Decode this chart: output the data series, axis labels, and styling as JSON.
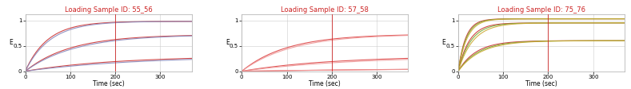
{
  "panels": [
    {
      "title": "Loading Sample ID: 55_56",
      "title_color": "#cc2222",
      "vline_x": 200,
      "vline_color": "#cc2222",
      "curves": [
        {
          "kd": 0.02,
          "plateau": 0.98,
          "color": "#cc3333",
          "lw": 0.8
        },
        {
          "kd": 0.018,
          "plateau": 0.98,
          "color": "#8888bb",
          "lw": 0.8
        },
        {
          "kd": 0.01,
          "plateau": 0.72,
          "color": "#cc3333",
          "lw": 0.8
        },
        {
          "kd": 0.009,
          "plateau": 0.72,
          "color": "#8888bb",
          "lw": 0.8
        },
        {
          "kd": 0.005,
          "plateau": 0.3,
          "color": "#cc3333",
          "lw": 0.8
        },
        {
          "kd": 0.004,
          "plateau": 0.3,
          "color": "#8888bb",
          "lw": 0.8
        }
      ],
      "xlim": [
        0,
        370
      ],
      "ylim": [
        0,
        1.12
      ],
      "xticks": [
        0,
        100,
        200,
        300
      ],
      "yticks": [
        0,
        0.5,
        1.0
      ],
      "ytick_labels": [
        "0",
        "0.5",
        "1"
      ]
    },
    {
      "title": "Loading Sample ID: 57_58",
      "title_color": "#cc2222",
      "vline_x": 200,
      "vline_color": "#cc2222",
      "curves": [
        {
          "kd": 0.01,
          "plateau": 0.73,
          "color": "#dd4444",
          "lw": 0.8
        },
        {
          "kd": 0.009,
          "plateau": 0.73,
          "color": "#ee9999",
          "lw": 0.8
        },
        {
          "kd": 0.005,
          "plateau": 0.3,
          "color": "#dd4444",
          "lw": 0.8
        },
        {
          "kd": 0.004,
          "plateau": 0.3,
          "color": "#ee9999",
          "lw": 0.8
        },
        {
          "kd": 0.002,
          "plateau": 0.07,
          "color": "#dd4444",
          "lw": 0.8
        },
        {
          "kd": 0.0018,
          "plateau": 0.07,
          "color": "#ee9999",
          "lw": 0.8
        }
      ],
      "xlim": [
        0,
        370
      ],
      "ylim": [
        0,
        1.12
      ],
      "xticks": [
        0,
        100,
        200,
        300
      ],
      "yticks": [
        0,
        0.5,
        1.0
      ],
      "ytick_labels": [
        "0",
        "0.5",
        "1"
      ]
    },
    {
      "title": "Loading Sample ID: 75_76",
      "title_color": "#cc2222",
      "vline_x": 200,
      "vline_color": "#cc2222",
      "curves": [
        {
          "kd": 0.06,
          "plateau": 1.03,
          "color": "#cc3333",
          "lw": 0.8
        },
        {
          "kd": 0.055,
          "plateau": 1.03,
          "color": "#77aa33",
          "lw": 0.8
        },
        {
          "kd": 0.05,
          "plateau": 1.03,
          "color": "#ccaa33",
          "lw": 0.8
        },
        {
          "kd": 0.04,
          "plateau": 0.95,
          "color": "#cc3333",
          "lw": 0.8
        },
        {
          "kd": 0.035,
          "plateau": 0.95,
          "color": "#77aa33",
          "lw": 0.8
        },
        {
          "kd": 0.03,
          "plateau": 0.95,
          "color": "#ccaa33",
          "lw": 0.8
        },
        {
          "kd": 0.025,
          "plateau": 0.6,
          "color": "#cc3333",
          "lw": 0.8
        },
        {
          "kd": 0.022,
          "plateau": 0.6,
          "color": "#77aa33",
          "lw": 0.8
        },
        {
          "kd": 0.02,
          "plateau": 0.6,
          "color": "#ccaa33",
          "lw": 0.8
        }
      ],
      "xlim": [
        0,
        370
      ],
      "ylim": [
        0,
        1.12
      ],
      "xticks": [
        0,
        100,
        200,
        300
      ],
      "yticks": [
        0,
        0.5,
        1.0
      ],
      "ytick_labels": [
        "0",
        "0.5",
        "1"
      ]
    }
  ],
  "xlabel": "Time (sec)",
  "ylabel": "E",
  "bg_color": "#ffffff",
  "plot_bg_color": "#ffffff",
  "grid_color": "#cccccc",
  "tick_fontsize": 5.0,
  "label_fontsize": 5.5,
  "title_fontsize": 6.0
}
